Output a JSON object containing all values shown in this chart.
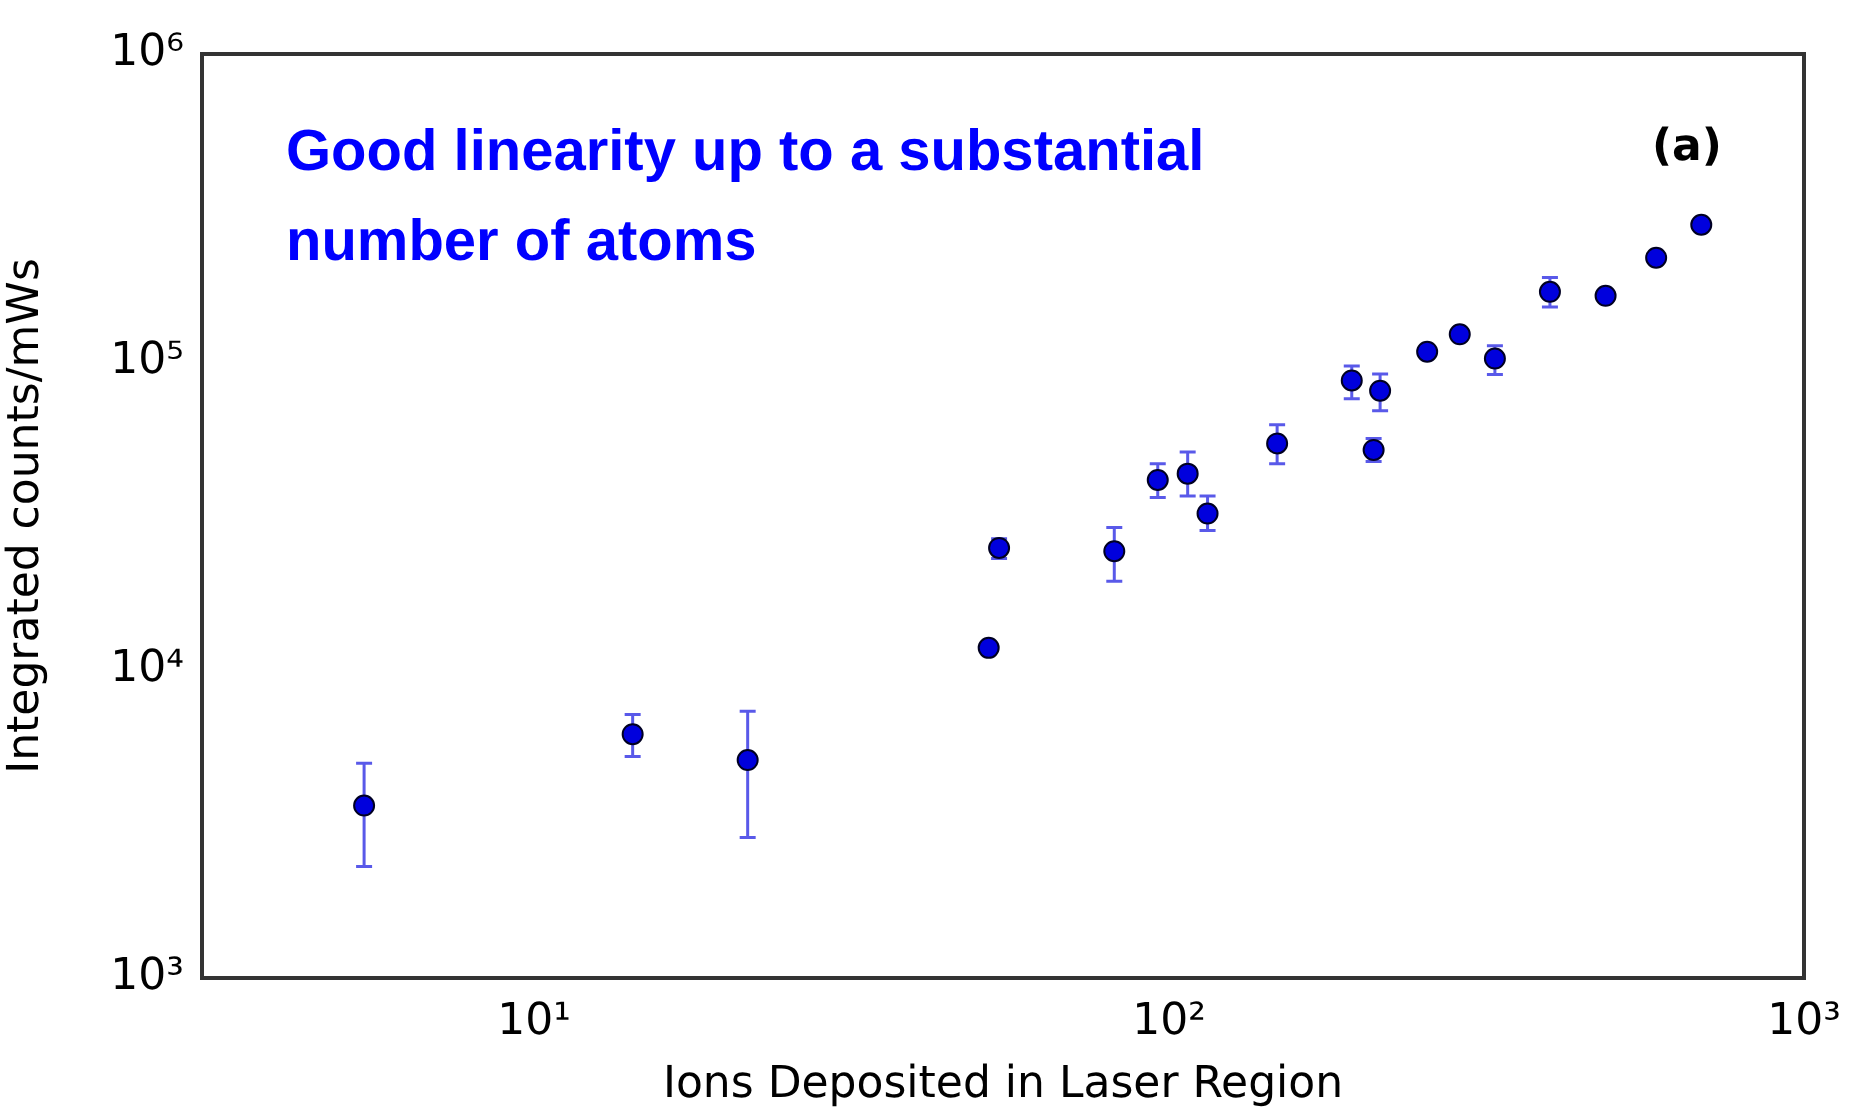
{
  "chart_data": {
    "type": "scatter",
    "xlabel": "Ions Deposited in Laser Region",
    "ylabel": "Integrated counts/mWs",
    "annotations": [
      "Good linearity up to a substantial number of atoms",
      "(a)"
    ],
    "log": "xy",
    "grid": false,
    "legend": false,
    "marker": "circle",
    "xlim": [
      3,
      1000
    ],
    "xticks": [
      {
        "value": 10,
        "label": "10¹"
      },
      {
        "value": 100,
        "label": "10²"
      },
      {
        "value": 1000,
        "label": "10³"
      }
    ],
    "ylim": [
      1000,
      1000000
    ],
    "yticks": [
      {
        "value": 1000,
        "label": "10³"
      },
      {
        "value": 10000,
        "label": "10⁴"
      },
      {
        "value": 100000,
        "label": "10⁵"
      },
      {
        "value": 1000000,
        "label": "10⁶"
      }
    ],
    "series": [
      {
        "color": "#0000dd",
        "x": [
          5.4,
          14.3,
          21.7,
          52,
          54,
          82,
          96,
          107,
          115,
          148,
          194,
          210,
          215,
          255,
          287,
          326,
          398,
          487,
          585,
          689
        ],
        "values": [
          3630,
          6190,
          5100,
          11800,
          24900,
          24300,
          41400,
          43400,
          32200,
          54400,
          87100,
          51800,
          80700,
          108000,
          123000,
          102600,
          169000,
          164000,
          218000,
          279000
        ],
        "errors": [
          [
            2300,
            4980
          ],
          [
            5240,
            7170
          ],
          [
            2860,
            7350
          ],
          null,
          [
            23000,
            26700
          ],
          [
            19400,
            29000
          ],
          [
            36300,
            46700
          ],
          [
            36700,
            51000
          ],
          [
            28400,
            36700
          ],
          [
            46700,
            62600
          ],
          [
            76000,
            97000
          ],
          [
            47500,
            56400
          ],
          [
            69500,
            91400
          ],
          null,
          null,
          [
            91000,
            113000
          ],
          [
            151000,
            188000
          ],
          null,
          null,
          null
        ]
      }
    ]
  }
}
